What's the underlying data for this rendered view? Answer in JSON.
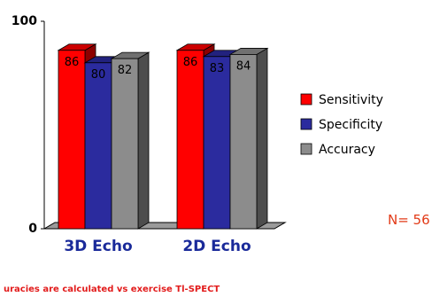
{
  "chart_data": {
    "type": "bar",
    "categories": [
      "3D Echo",
      "2D Echo"
    ],
    "series": [
      {
        "name": "Sensitivity",
        "values": [
          86,
          86
        ],
        "color": "#ff0000"
      },
      {
        "name": "Specificity",
        "values": [
          80,
          83
        ],
        "color": "#2b2b9e"
      },
      {
        "name": "Accuracy",
        "values": [
          82,
          84
        ],
        "color": "#8c8c8c"
      }
    ],
    "ylim": [
      0,
      100
    ],
    "y_ticks": [
      "100",
      "0"
    ],
    "data_labels": true,
    "legend_position": "right",
    "style": "3d-bars",
    "title": "",
    "xlabel": "",
    "ylabel": ""
  },
  "annotation": "N= 56",
  "footnote": "uracies are calculated vs exercise Tl-SPECT"
}
